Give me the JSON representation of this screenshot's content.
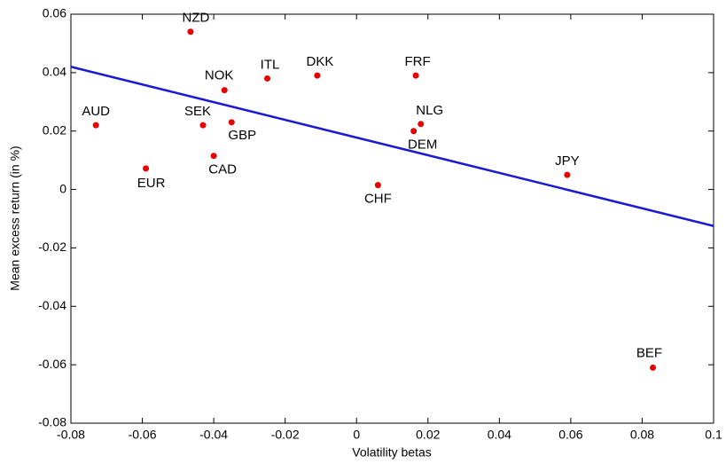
{
  "chart_data": {
    "type": "scatter",
    "xlabel": "Volatility betas",
    "ylabel": "Mean excess return (in %)",
    "xlim": [
      -0.08,
      0.1
    ],
    "ylim": [
      -0.08,
      0.06
    ],
    "xticks": [
      -0.08,
      -0.06,
      -0.04,
      -0.02,
      0,
      0.02,
      0.04,
      0.06,
      0.08,
      0.1
    ],
    "yticks": [
      -0.08,
      -0.06,
      -0.04,
      -0.02,
      0,
      0.02,
      0.04,
      0.06
    ],
    "points": {
      "color": "#e60000",
      "labels": [
        "AUD",
        "EUR",
        "NZD",
        "SEK",
        "CAD",
        "NOK",
        "GBP",
        "ITL",
        "DKK",
        "CHF",
        "DEM",
        "NLG",
        "FRF",
        "JPY",
        "BEF"
      ],
      "x": [
        -0.073,
        -0.059,
        -0.0465,
        -0.043,
        -0.04,
        -0.037,
        -0.035,
        -0.025,
        -0.011,
        0.006,
        0.016,
        0.018,
        0.0166,
        0.059,
        0.083
      ],
      "values": [
        0.022,
        0.0072,
        0.054,
        0.022,
        0.0115,
        0.034,
        0.023,
        0.038,
        0.039,
        0.0015,
        0.02,
        0.0224,
        0.039,
        0.005,
        -0.061
      ]
    },
    "fit_line": {
      "color": "#1a1ad6",
      "x": [
        -0.08,
        0.1
      ],
      "values": [
        0.042,
        -0.0125
      ]
    }
  }
}
